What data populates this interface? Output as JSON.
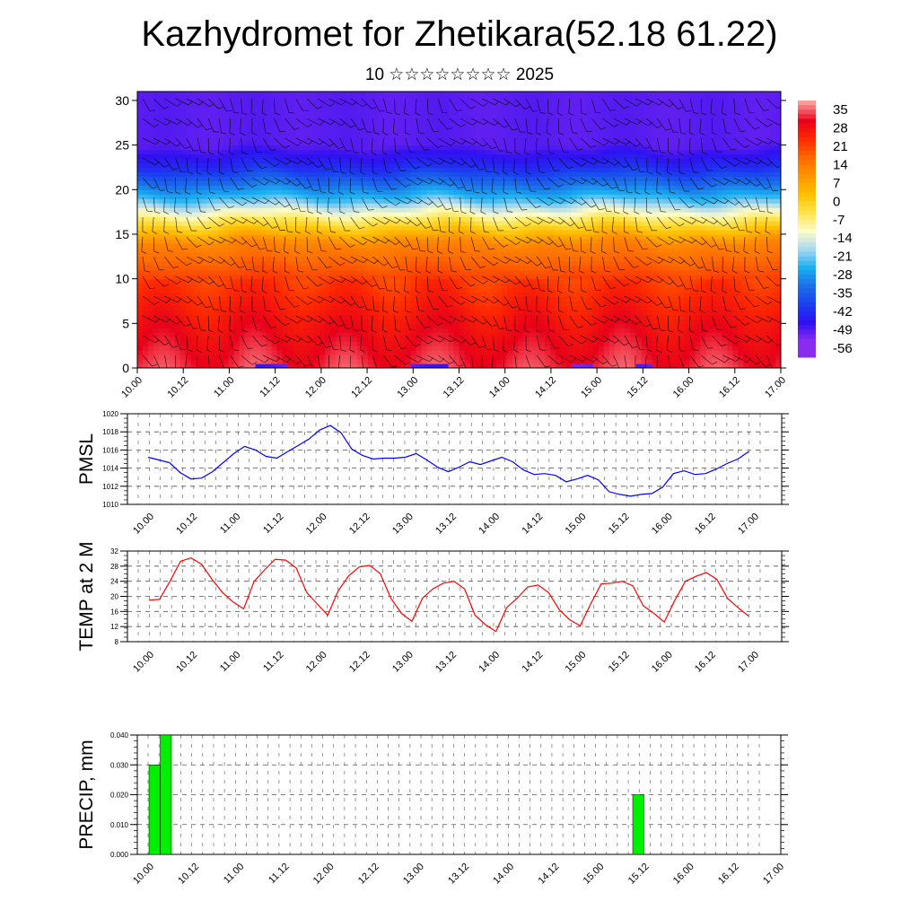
{
  "title": "Kazhydromet for Zhetikara(52.18 61.22)",
  "subtitle": "10 ☆☆☆☆☆☆☆☆ 2025",
  "chart_data": [
    {
      "type": "heatmap",
      "name": "vertical cross-section",
      "ylim": [
        0,
        31
      ],
      "yticks": [
        0,
        5,
        10,
        15,
        20,
        25,
        30
      ],
      "xticks": [
        "10.00",
        "10.12",
        "11.00",
        "11.12",
        "12.00",
        "12.12",
        "13.00",
        "13.12",
        "14.00",
        "14.12",
        "15.00",
        "15.12",
        "16.00",
        "16.12",
        "17.00"
      ],
      "colorbar": {
        "labels": [
          "35",
          "28",
          "21",
          "14",
          "7",
          "0",
          "-7",
          "-14",
          "-21",
          "-28",
          "-35",
          "-42",
          "-49",
          "-56"
        ],
        "colors": [
          "#ff9a9a",
          "#e8001a",
          "#ff2a00",
          "#ff6a00",
          "#ff9500",
          "#ffc000",
          "#ffe44a",
          "#fffcc8",
          "#a8d8f0",
          "#1ab0f0",
          "#1a70e8",
          "#1a40f0",
          "#3010f0",
          "#8a2cf0"
        ]
      },
      "value_range": [
        -60,
        37
      ],
      "profile_levels": [
        0,
        5,
        10,
        14,
        16.5,
        19,
        22.5,
        25,
        31
      ],
      "profile_values": [
        32,
        27,
        20,
        10,
        -8,
        -28,
        -48,
        -56,
        -56
      ]
    },
    {
      "type": "line",
      "ylabel": "PMSL",
      "ylim": [
        1010,
        1020
      ],
      "yticks": [
        1010,
        1012,
        1014,
        1016,
        1018,
        1020
      ],
      "xticks": [
        "10.00",
        "10.12",
        "11.00",
        "11.12",
        "12.00",
        "12.12",
        "13.00",
        "13.12",
        "14.00",
        "14.12",
        "15.00",
        "15.12",
        "16.00",
        "16.12",
        "17.00"
      ],
      "color": "#0000ff",
      "values": [
        1015.2,
        1014.9,
        1014.6,
        1013.5,
        1012.8,
        1012.9,
        1013.6,
        1014.6,
        1015.6,
        1016.4,
        1016.0,
        1015.3,
        1015.1,
        1015.8,
        1016.5,
        1017.2,
        1018.2,
        1018.7,
        1017.9,
        1016.1,
        1015.4,
        1015.0,
        1015.1,
        1015.1,
        1015.2,
        1015.6,
        1014.9,
        1014.1,
        1013.6,
        1014.1,
        1014.7,
        1014.4,
        1014.8,
        1015.2,
        1014.7,
        1013.8,
        1013.3,
        1013.4,
        1013.2,
        1012.5,
        1012.8,
        1013.2,
        1012.7,
        1011.4,
        1011.1,
        1010.9,
        1011.1,
        1011.2,
        1011.9,
        1013.4,
        1013.7,
        1013.3,
        1013.4,
        1013.9,
        1014.5,
        1015.0,
        1015.8
      ]
    },
    {
      "type": "line",
      "ylabel": "TEMP at 2 M",
      "ylim": [
        8,
        32
      ],
      "yticks": [
        8,
        12,
        16,
        20,
        24,
        28,
        32
      ],
      "xticks": [
        "10.00",
        "10.12",
        "11.00",
        "11.12",
        "12.00",
        "12.12",
        "13.00",
        "13.12",
        "14.00",
        "14.12",
        "15.00",
        "15.12",
        "16.00",
        "16.12",
        "17.00"
      ],
      "color": "#ff0000",
      "values": [
        19.0,
        19.2,
        24.0,
        29.3,
        30.2,
        28.5,
        24.5,
        21.0,
        18.5,
        16.7,
        24.0,
        27.0,
        29.8,
        29.6,
        27.5,
        21.0,
        18.0,
        15.0,
        21.5,
        25.5,
        27.8,
        28.2,
        26.0,
        19.5,
        15.5,
        13.4,
        19.5,
        22.0,
        23.5,
        24.0,
        22.0,
        15.0,
        12.5,
        10.7,
        17.0,
        19.5,
        22.5,
        23.0,
        21.0,
        16.5,
        13.8,
        12.2,
        18.0,
        23.3,
        23.5,
        24.0,
        22.8,
        17.5,
        15.5,
        13.2,
        19.0,
        24.0,
        25.3,
        26.3,
        24.5,
        19.5,
        17.0,
        14.8
      ]
    },
    {
      "type": "bar",
      "ylabel": "PRECIP, mm",
      "ylim": [
        0,
        0.04
      ],
      "yticks": [
        "0.000",
        "0.010",
        "0.020",
        "0.030",
        "0.040"
      ],
      "xticks": [
        "10.00",
        "10.12",
        "11.00",
        "11.12",
        "12.00",
        "12.12",
        "13.00",
        "13.12",
        "14.00",
        "14.12",
        "15.00",
        "15.12",
        "16.00",
        "16.12",
        "17.00"
      ],
      "color": "#00ee00",
      "bars": [
        {
          "start_hour": 0,
          "end_hour": 3,
          "value": 0.03
        },
        {
          "start_hour": 3,
          "end_hour": 6,
          "value": 0.04
        },
        {
          "start_hour": 129,
          "end_hour": 132,
          "value": 0.02
        }
      ]
    }
  ]
}
